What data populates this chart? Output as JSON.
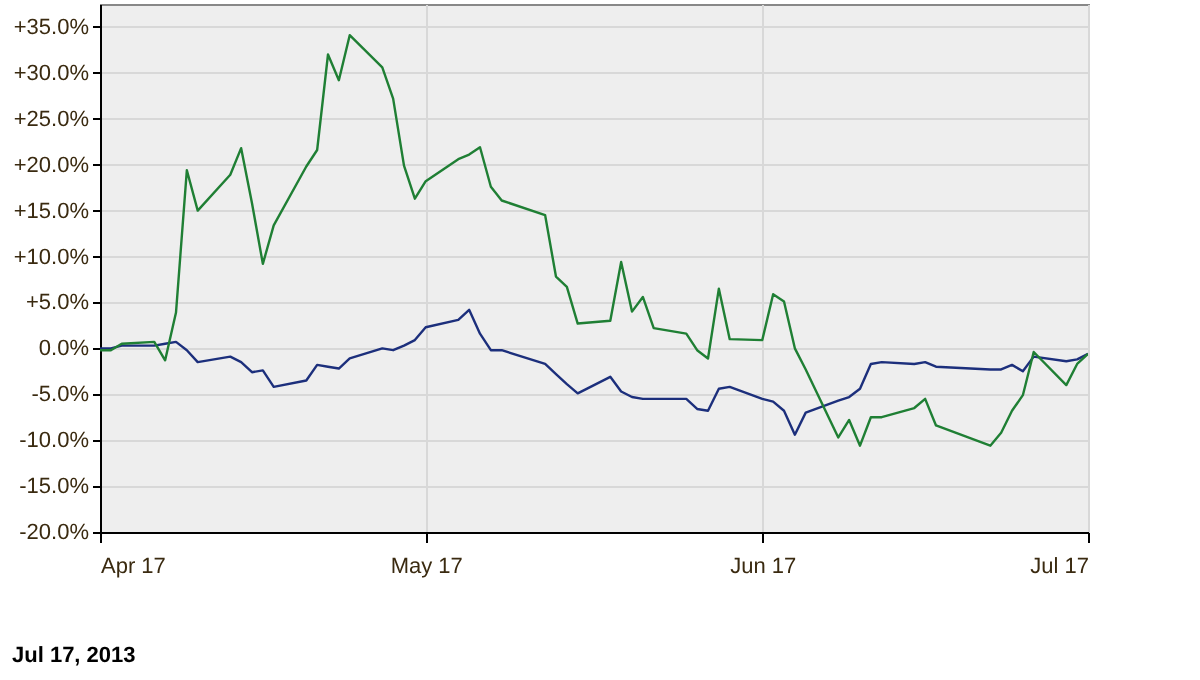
{
  "chart_data": {
    "type": "line",
    "x": [
      "2013-04-17",
      "2013-04-18",
      "2013-04-19",
      "2013-04-22",
      "2013-04-23",
      "2013-04-24",
      "2013-04-25",
      "2013-04-26",
      "2013-04-29",
      "2013-04-30",
      "2013-05-01",
      "2013-05-02",
      "2013-05-03",
      "2013-05-06",
      "2013-05-07",
      "2013-05-08",
      "2013-05-09",
      "2013-05-10",
      "2013-05-13",
      "2013-05-14",
      "2013-05-15",
      "2013-05-16",
      "2013-05-17",
      "2013-05-20",
      "2013-05-21",
      "2013-05-22",
      "2013-05-23",
      "2013-05-24",
      "2013-05-28",
      "2013-05-29",
      "2013-05-30",
      "2013-05-31",
      "2013-06-03",
      "2013-06-04",
      "2013-06-05",
      "2013-06-06",
      "2013-06-07",
      "2013-06-10",
      "2013-06-11",
      "2013-06-12",
      "2013-06-13",
      "2013-06-14",
      "2013-06-17",
      "2013-06-18",
      "2013-06-19",
      "2013-06-20",
      "2013-06-21",
      "2013-06-24",
      "2013-06-25",
      "2013-06-26",
      "2013-06-27",
      "2013-06-28",
      "2013-07-01",
      "2013-07-02",
      "2013-07-03",
      "2013-07-08",
      "2013-07-09",
      "2013-07-10",
      "2013-07-11",
      "2013-07-12",
      "2013-07-15",
      "2013-07-16",
      "2013-07-17"
    ],
    "series": [
      {
        "color": "#1c2f7c",
        "values": [
          0.0,
          0.0,
          0.3,
          0.3,
          0.5,
          0.7,
          -0.2,
          -1.5,
          -0.9,
          -1.5,
          -2.6,
          -2.4,
          -4.2,
          -3.5,
          -1.8,
          -2.0,
          -2.2,
          -1.1,
          0.0,
          -0.2,
          0.3,
          0.9,
          2.3,
          3.1,
          4.2,
          1.6,
          -0.2,
          -0.2,
          -1.7,
          -2.8,
          -3.9,
          -4.9,
          -3.1,
          -4.7,
          -5.3,
          -5.5,
          -5.5,
          -5.5,
          -6.6,
          -6.8,
          -4.4,
          -4.2,
          -5.5,
          -5.8,
          -6.8,
          -9.4,
          -7.0,
          -5.7,
          -5.3,
          -4.4,
          -1.7,
          -1.5,
          -1.7,
          -1.5,
          -2.0,
          -2.3,
          -2.3,
          -1.8,
          -2.5,
          -0.9,
          -1.4,
          -1.2,
          -0.6
        ]
      },
      {
        "color": "#1f7f34",
        "values": [
          -0.2,
          -0.2,
          0.5,
          0.7,
          -1.3,
          3.9,
          19.4,
          15.0,
          18.9,
          21.8,
          15.8,
          9.2,
          13.4,
          19.8,
          21.6,
          32.0,
          29.2,
          34.1,
          30.6,
          27.2,
          19.9,
          16.3,
          18.2,
          20.6,
          21.1,
          21.9,
          17.6,
          16.1,
          14.5,
          7.8,
          6.7,
          2.7,
          3.0,
          9.4,
          4.0,
          5.6,
          2.2,
          1.6,
          -0.2,
          -1.1,
          6.5,
          1.0,
          0.9,
          5.9,
          5.1,
          0.0,
          -2.3,
          -9.7,
          -7.8,
          -10.6,
          -7.5,
          -7.5,
          -6.5,
          -5.5,
          -8.4,
          -10.6,
          -9.2,
          -6.8,
          -5.1,
          -0.4,
          -4.0,
          -1.7,
          -0.6
        ]
      }
    ],
    "xlim": [
      "2013-04-17",
      "2013-07-17"
    ],
    "xticks": [
      {
        "value": "2013-04-17",
        "label": "Apr 17"
      },
      {
        "value": "2013-05-17",
        "label": "May 17"
      },
      {
        "value": "2013-06-17",
        "label": "Jun 17"
      },
      {
        "value": "2013-07-17",
        "label": "Jul 17"
      }
    ],
    "ylim": [
      -20,
      37.5
    ],
    "yticks": [
      {
        "value": -20,
        "label": "-20.0%"
      },
      {
        "value": -15,
        "label": "-15.0%"
      },
      {
        "value": -10,
        "label": "-10.0%"
      },
      {
        "value": -5,
        "label": "-5.0%"
      },
      {
        "value": 0,
        "label": "0.0%"
      },
      {
        "value": 5,
        "label": "+5.0%"
      },
      {
        "value": 10,
        "label": "+10.0%"
      },
      {
        "value": 15,
        "label": "+15.0%"
      },
      {
        "value": 20,
        "label": "+20.0%"
      },
      {
        "value": 25,
        "label": "+25.0%"
      },
      {
        "value": 30,
        "label": "+30.0%"
      },
      {
        "value": 35,
        "label": "+35.0%"
      }
    ],
    "grid": true,
    "annotations": [
      "Jul 17, 2013"
    ]
  }
}
